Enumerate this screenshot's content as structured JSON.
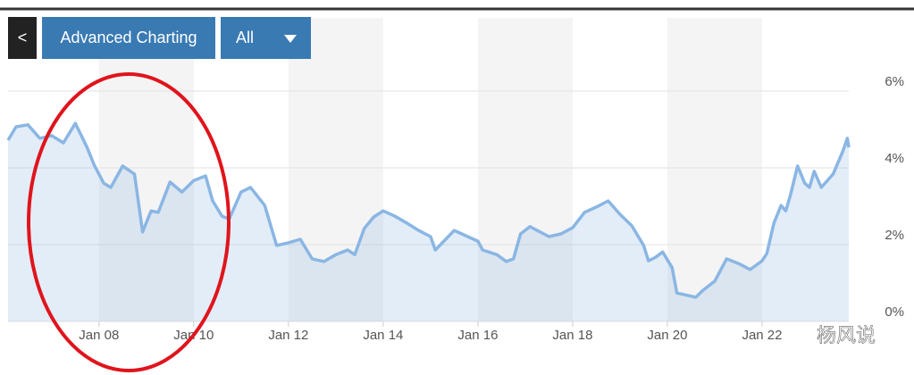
{
  "toolbar": {
    "back": "<",
    "advanced": "Advanced Charting",
    "range": "All"
  },
  "watermark": "杨风说",
  "chart_data": {
    "type": "area",
    "x": [
      2006.08,
      2006.25,
      2006.5,
      2006.75,
      2007.0,
      2007.25,
      2007.5,
      2007.75,
      2007.9,
      2008.1,
      2008.25,
      2008.5,
      2008.75,
      2008.92,
      2009.1,
      2009.25,
      2009.5,
      2009.75,
      2010.0,
      2010.25,
      2010.4,
      2010.6,
      2010.75,
      2011.0,
      2011.2,
      2011.5,
      2011.75,
      2012.0,
      2012.25,
      2012.5,
      2012.75,
      2013.0,
      2013.25,
      2013.4,
      2013.6,
      2013.8,
      2014.0,
      2014.25,
      2014.5,
      2014.75,
      2015.0,
      2015.1,
      2015.25,
      2015.5,
      2015.75,
      2016.0,
      2016.1,
      2016.4,
      2016.6,
      2016.75,
      2016.9,
      2017.1,
      2017.25,
      2017.5,
      2017.75,
      2018.0,
      2018.25,
      2018.5,
      2018.75,
      2019.0,
      2019.25,
      2019.5,
      2019.6,
      2019.75,
      2019.9,
      2020.1,
      2020.2,
      2020.35,
      2020.6,
      2020.75,
      2021.0,
      2021.25,
      2021.5,
      2021.75,
      2022.0,
      2022.1,
      2022.25,
      2022.4,
      2022.5,
      2022.6,
      2022.75,
      2022.9,
      2023.0,
      2023.1,
      2023.25,
      2023.5,
      2023.7,
      2023.8,
      2023.83
    ],
    "values": [
      4.72,
      5.07,
      5.12,
      4.77,
      4.84,
      4.65,
      5.16,
      4.53,
      4.07,
      3.6,
      3.49,
      4.05,
      3.84,
      2.33,
      2.88,
      2.84,
      3.63,
      3.37,
      3.67,
      3.79,
      3.14,
      2.74,
      2.67,
      3.37,
      3.49,
      3.02,
      1.98,
      2.05,
      2.14,
      1.63,
      1.56,
      1.74,
      1.86,
      1.74,
      2.42,
      2.72,
      2.88,
      2.74,
      2.56,
      2.37,
      2.21,
      1.86,
      2.05,
      2.37,
      2.23,
      2.09,
      1.86,
      1.74,
      1.56,
      1.63,
      2.28,
      2.47,
      2.37,
      2.21,
      2.28,
      2.44,
      2.84,
      2.98,
      3.14,
      2.79,
      2.49,
      1.98,
      1.58,
      1.67,
      1.81,
      1.4,
      0.74,
      0.7,
      0.63,
      0.81,
      1.05,
      1.63,
      1.51,
      1.35,
      1.58,
      1.77,
      2.56,
      3.02,
      2.88,
      3.3,
      4.05,
      3.6,
      3.49,
      3.91,
      3.49,
      3.84,
      4.42,
      4.77,
      4.53
    ],
    "color": "#8ab6e3",
    "xlim": [
      2006.08,
      2023.83
    ],
    "xticks": [
      {
        "value": 2008,
        "label": "Jan 08"
      },
      {
        "value": 2010,
        "label": "Jan 10"
      },
      {
        "value": 2012,
        "label": "Jan 12"
      },
      {
        "value": 2014,
        "label": "Jan 14"
      },
      {
        "value": 2016,
        "label": "Jan 16"
      },
      {
        "value": 2018,
        "label": "Jan 18"
      },
      {
        "value": 2020,
        "label": "Jan 20"
      },
      {
        "value": 2022,
        "label": "Jan 22"
      }
    ],
    "ylim": [
      0,
      6
    ],
    "yticks": [
      {
        "value": 0,
        "label": "0%"
      },
      {
        "value": 2,
        "label": "2%"
      },
      {
        "value": 4,
        "label": "4%"
      },
      {
        "value": 6,
        "label": "6%"
      }
    ],
    "grid": true
  }
}
